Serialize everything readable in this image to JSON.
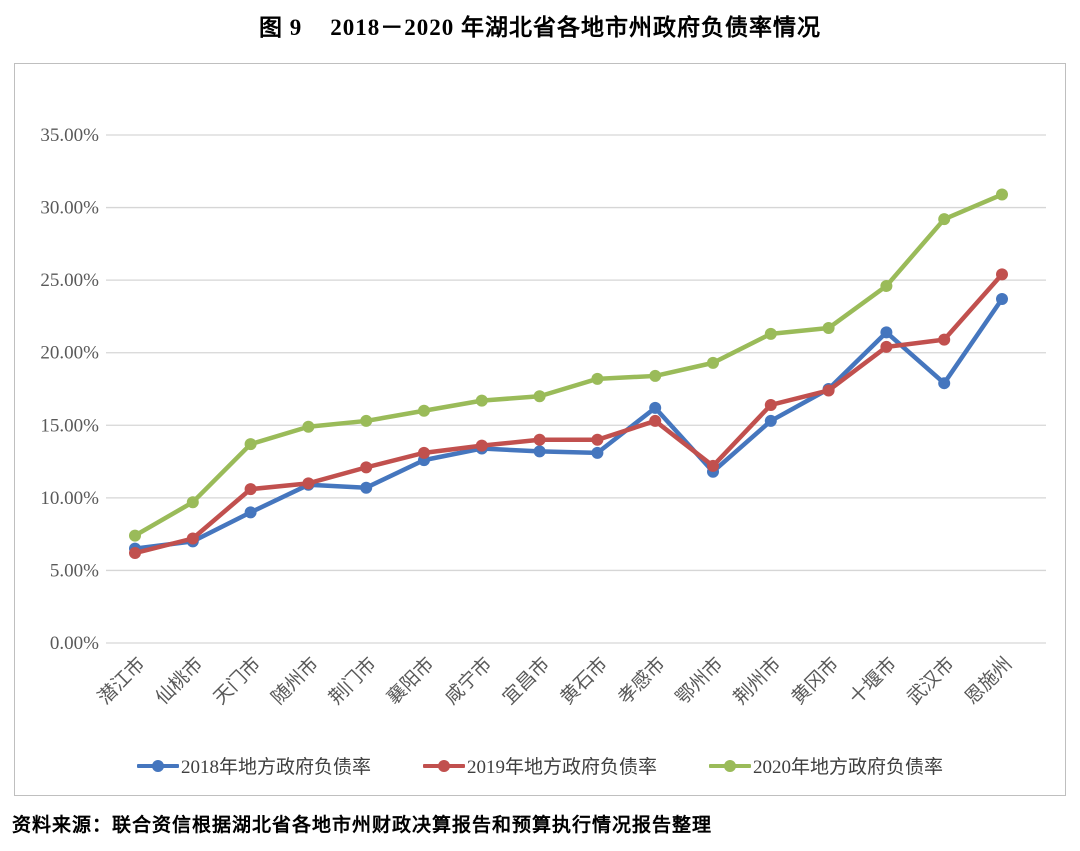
{
  "title": {
    "prefix": "图 9",
    "main": "2018－2020 年湖北省各地市州政府负债率情况"
  },
  "source": "资料来源：联合资信根据湖北省各地市州财政决算报告和预算执行情况报告整理",
  "colors": {
    "series_2018": "#4576BE",
    "series_2019": "#C1504E",
    "series_2020": "#9ABB59",
    "gridline": "#D6D6D6",
    "frame_border": "#BFBFBF",
    "tick_text": "#595959"
  },
  "chart_data": {
    "type": "line",
    "title": "图 9 2018－2020 年湖北省各地市州政府负债率情况",
    "categories": [
      "潜江市",
      "仙桃市",
      "天门市",
      "随州市",
      "荆门市",
      "襄阳市",
      "咸宁市",
      "宜昌市",
      "黄石市",
      "孝感市",
      "鄂州市",
      "荆州市",
      "黄冈市",
      "十堰市",
      "武汉市",
      "恩施州"
    ],
    "series": [
      {
        "name": "2018年地方政府负债率",
        "color": "#4576BE",
        "values": [
          6.5,
          7.0,
          9.0,
          10.9,
          10.7,
          12.6,
          13.4,
          13.2,
          13.1,
          16.2,
          11.8,
          15.3,
          17.5,
          21.4,
          17.9,
          23.7
        ]
      },
      {
        "name": "2019年地方政府负债率",
        "color": "#C1504E",
        "values": [
          6.2,
          7.2,
          10.6,
          11.0,
          12.1,
          13.1,
          13.6,
          14.0,
          14.0,
          15.3,
          12.2,
          16.4,
          17.4,
          20.4,
          20.9,
          25.4
        ]
      },
      {
        "name": "2020年地方政府负债率",
        "color": "#9ABB59",
        "values": [
          7.4,
          9.7,
          13.7,
          14.9,
          15.3,
          16.0,
          16.7,
          17.0,
          18.2,
          18.4,
          19.3,
          21.3,
          21.7,
          24.6,
          29.2,
          30.9
        ]
      }
    ],
    "yticks": [
      {
        "label": "0.00%",
        "value": 0
      },
      {
        "label": "5.00%",
        "value": 5
      },
      {
        "label": "10.00%",
        "value": 10
      },
      {
        "label": "15.00%",
        "value": 15
      },
      {
        "label": "20.00%",
        "value": 20
      },
      {
        "label": "25.00%",
        "value": 25
      },
      {
        "label": "30.00%",
        "value": 30
      },
      {
        "label": "35.00%",
        "value": 35
      }
    ],
    "ylim": [
      0,
      35
    ],
    "xlabel": "",
    "ylabel": "",
    "grid": true,
    "legend_position": "bottom"
  }
}
